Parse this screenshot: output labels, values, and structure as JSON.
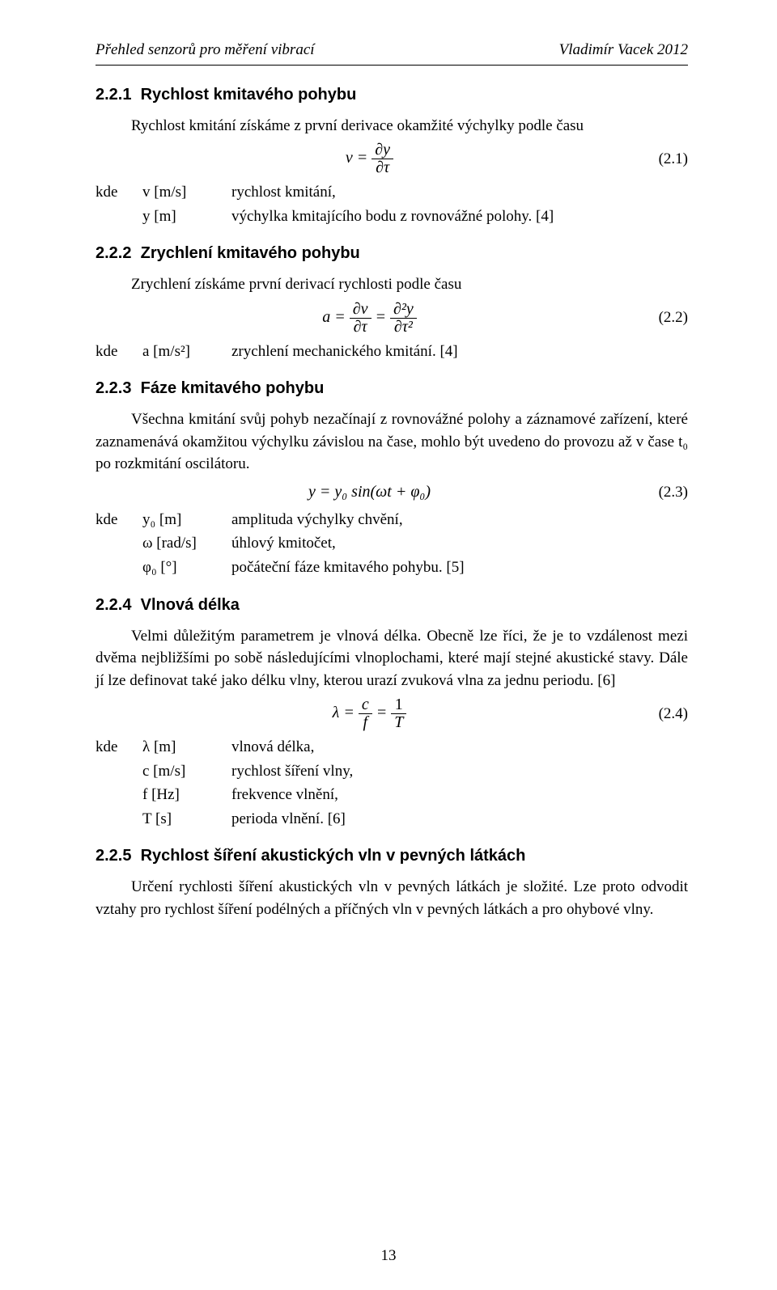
{
  "header": {
    "left": "Přehled senzorů pro měření vibrací",
    "right": "Vladimír Vacek 2012"
  },
  "s221": {
    "num": "2.2.1",
    "title": "Rychlost kmitavého pohybu",
    "intro": "Rychlost kmitání získáme z první derivace okamžité výchylky podle času",
    "eq_lhs": "v =",
    "eq_num_top": "∂y",
    "eq_num_bot": "∂τ",
    "eq_label": "(2.1)",
    "kde": "kde",
    "v_sym": "v [m/s]",
    "v_desc": "rychlost kmitání,",
    "y_sym": "y [m]",
    "y_desc": "výchylka kmitajícího bodu z rovnovážné polohy. [4]"
  },
  "s222": {
    "num": "2.2.2",
    "title": "Zrychlení kmitavého pohybu",
    "intro": "Zrychlení získáme první derivací rychlosti podle času",
    "eq_lhs": "a =",
    "f1_top": "∂v",
    "f1_bot": "∂τ",
    "eq_mid": "=",
    "f2_top": "∂²y",
    "f2_bot": "∂τ²",
    "eq_label": "(2.2)",
    "kde": "kde",
    "a_sym": "a [m/s²]",
    "a_desc": "zrychlení mechanického kmitání. [4]"
  },
  "s223": {
    "num": "2.2.3",
    "title": "Fáze kmitavého pohybu",
    "para": "Všechna kmitání svůj pohyb nezačínají z rovnovážné polohy a záznamové zařízení, které zaznamenává okamžitou výchylku závislou na čase, mohlo být uvedeno do provozu až v čase t₀ po rozkmitání oscilátoru.",
    "eq": "y = y₀ sin(ωt + φ₀)",
    "eq_label": "(2.3)",
    "kde": "kde",
    "y0_sym": "y₀ [m]",
    "y0_desc": "amplituda výchylky chvění,",
    "w_sym": "ω [rad/s]",
    "w_desc": "úhlový kmitočet,",
    "phi_sym": "φ₀ [°]",
    "phi_desc": "počáteční fáze kmitavého pohybu. [5]"
  },
  "s224": {
    "num": "2.2.4",
    "title": "Vlnová délka",
    "para": "Velmi důležitým parametrem je vlnová délka. Obecně lze říci, že je to vzdálenost mezi dvěma nejbližšími po sobě následujícími vlnoplochami, které mají stejné akustické stavy. Dále jí lze definovat také jako délku vlny, kterou urazí zvuková vlna za jednu periodu. [6]",
    "eq_lhs": "λ =",
    "f1_top": "c",
    "f1_bot": "f",
    "eq_mid": "=",
    "f2_top": "1",
    "f2_bot": "T",
    "eq_label": "(2.4)",
    "kde": "kde",
    "l_sym": "λ [m]",
    "l_desc": "vlnová délka,",
    "c_sym": "c [m/s]",
    "c_desc": "rychlost šíření vlny,",
    "f_sym": "f [Hz]",
    "f_desc": "frekvence vlnění,",
    "t_sym": "T [s]",
    "t_desc": "perioda vlnění. [6]"
  },
  "s225": {
    "num": "2.2.5",
    "title": "Rychlost šíření akustických vln v pevných látkách",
    "para": "Určení rychlosti šíření akustických vln v pevných látkách je složité. Lze proto odvodit vztahy pro rychlost šíření podélných a příčných vln v pevných látkách a pro ohybové vlny."
  },
  "page_number": "13"
}
